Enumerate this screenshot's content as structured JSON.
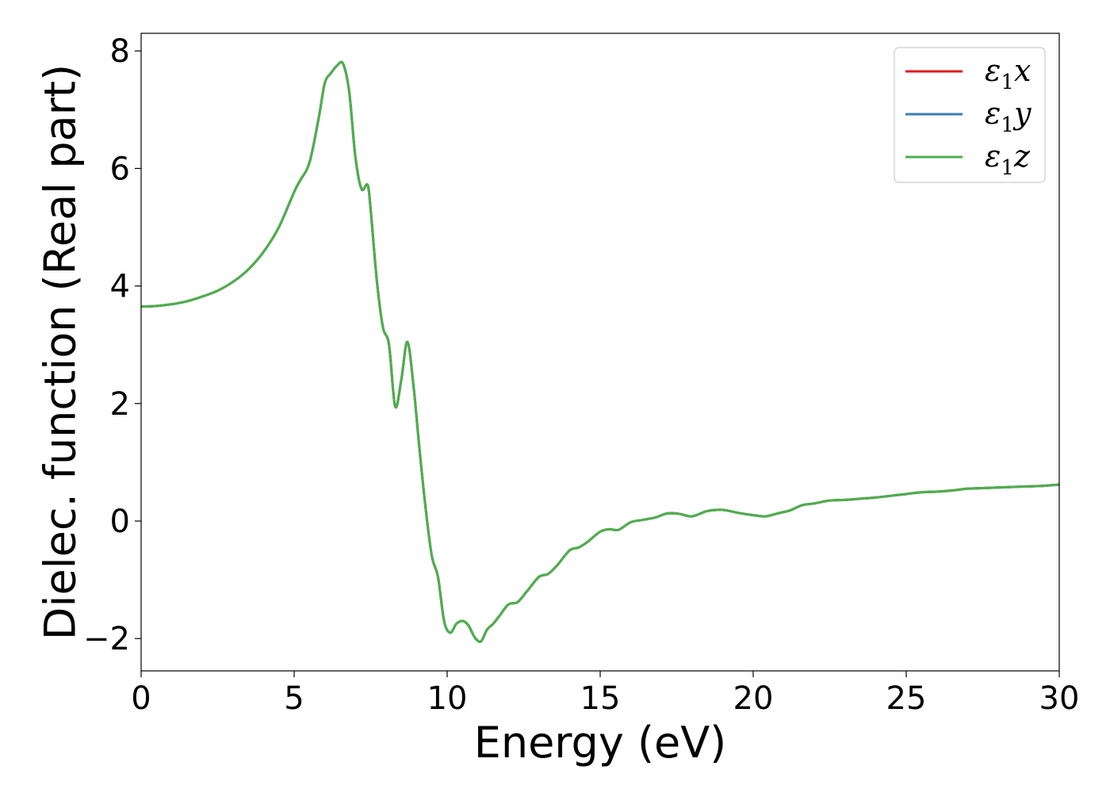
{
  "chart_data": {
    "type": "line",
    "title": "",
    "xlabel": "Energy (eV)",
    "ylabel": "Dielec. function (Real part)",
    "xlim": [
      0,
      30
    ],
    "ylim": [
      -2.55,
      8.3
    ],
    "xticks": [
      0,
      5,
      10,
      15,
      20,
      25,
      30
    ],
    "xtick_labels": [
      "0",
      "5",
      "10",
      "15",
      "20",
      "25",
      "30"
    ],
    "yticks": [
      -2,
      0,
      2,
      4,
      6,
      8
    ],
    "ytick_labels": [
      "−2",
      "0",
      "2",
      "4",
      "6",
      "8"
    ],
    "grid": false,
    "legend_position": "top-right",
    "x": [
      0,
      0.5,
      1,
      1.5,
      2,
      2.5,
      3,
      3.5,
      4,
      4.5,
      5,
      5.2,
      5.5,
      5.8,
      6.0,
      6.2,
      6.4,
      6.6,
      6.8,
      7.0,
      7.2,
      7.4,
      7.5,
      7.7,
      7.9,
      8.1,
      8.3,
      8.5,
      8.7,
      8.9,
      9.1,
      9.3,
      9.5,
      9.7,
      9.9,
      10.1,
      10.3,
      10.5,
      10.7,
      10.9,
      11.1,
      11.3,
      11.5,
      11.7,
      12.0,
      12.3,
      12.6,
      13.0,
      13.3,
      13.6,
      14.0,
      14.3,
      14.6,
      15.0,
      15.3,
      15.6,
      16.0,
      16.4,
      16.8,
      17.2,
      17.6,
      18.0,
      18.5,
      19.0,
      19.5,
      20.0,
      20.4,
      20.8,
      21.2,
      21.6,
      22.0,
      22.5,
      23.0,
      23.5,
      24.0,
      24.5,
      25.0,
      25.5,
      26.0,
      26.5,
      27.0,
      27.5,
      28.0,
      28.5,
      29.0,
      29.5,
      30.0
    ],
    "series": [
      {
        "name": "ε1x",
        "color": "#e41a1c",
        "values": [
          3.65,
          3.66,
          3.69,
          3.74,
          3.82,
          3.92,
          4.07,
          4.28,
          4.58,
          5.0,
          5.6,
          5.8,
          6.1,
          6.85,
          7.45,
          7.62,
          7.75,
          7.78,
          7.3,
          6.2,
          5.65,
          5.72,
          5.3,
          4.1,
          3.3,
          3.0,
          1.95,
          2.4,
          3.05,
          2.3,
          1.2,
          0.2,
          -0.6,
          -0.95,
          -1.7,
          -1.9,
          -1.75,
          -1.7,
          -1.78,
          -1.98,
          -2.05,
          -1.85,
          -1.75,
          -1.62,
          -1.42,
          -1.38,
          -1.2,
          -0.95,
          -0.9,
          -0.75,
          -0.5,
          -0.45,
          -0.35,
          -0.18,
          -0.14,
          -0.15,
          -0.02,
          0.02,
          0.06,
          0.13,
          0.12,
          0.08,
          0.17,
          0.19,
          0.14,
          0.1,
          0.08,
          0.13,
          0.18,
          0.27,
          0.3,
          0.35,
          0.36,
          0.38,
          0.4,
          0.43,
          0.46,
          0.49,
          0.5,
          0.52,
          0.55,
          0.56,
          0.57,
          0.58,
          0.59,
          0.6,
          0.62
        ]
      },
      {
        "name": "ε1y",
        "color": "#377eb8",
        "values": [
          3.65,
          3.66,
          3.69,
          3.74,
          3.82,
          3.92,
          4.07,
          4.28,
          4.58,
          5.0,
          5.6,
          5.8,
          6.1,
          6.85,
          7.45,
          7.62,
          7.75,
          7.78,
          7.3,
          6.2,
          5.65,
          5.72,
          5.3,
          4.1,
          3.3,
          3.0,
          1.95,
          2.4,
          3.05,
          2.3,
          1.2,
          0.2,
          -0.6,
          -0.95,
          -1.7,
          -1.9,
          -1.75,
          -1.7,
          -1.78,
          -1.98,
          -2.05,
          -1.85,
          -1.75,
          -1.62,
          -1.42,
          -1.38,
          -1.2,
          -0.95,
          -0.9,
          -0.75,
          -0.5,
          -0.45,
          -0.35,
          -0.18,
          -0.14,
          -0.15,
          -0.02,
          0.02,
          0.06,
          0.13,
          0.12,
          0.08,
          0.17,
          0.19,
          0.14,
          0.1,
          0.08,
          0.13,
          0.18,
          0.27,
          0.3,
          0.35,
          0.36,
          0.38,
          0.4,
          0.43,
          0.46,
          0.49,
          0.5,
          0.52,
          0.55,
          0.56,
          0.57,
          0.58,
          0.59,
          0.6,
          0.62
        ]
      },
      {
        "name": "ε1z",
        "color": "#4daf4a",
        "values": [
          3.65,
          3.66,
          3.69,
          3.74,
          3.82,
          3.92,
          4.07,
          4.28,
          4.58,
          5.0,
          5.6,
          5.8,
          6.1,
          6.85,
          7.45,
          7.62,
          7.75,
          7.78,
          7.3,
          6.2,
          5.65,
          5.72,
          5.3,
          4.1,
          3.3,
          3.0,
          1.95,
          2.4,
          3.05,
          2.3,
          1.2,
          0.2,
          -0.6,
          -0.95,
          -1.7,
          -1.9,
          -1.75,
          -1.7,
          -1.78,
          -1.98,
          -2.05,
          -1.85,
          -1.75,
          -1.62,
          -1.42,
          -1.38,
          -1.2,
          -0.95,
          -0.9,
          -0.75,
          -0.5,
          -0.45,
          -0.35,
          -0.18,
          -0.14,
          -0.15,
          -0.02,
          0.02,
          0.06,
          0.13,
          0.12,
          0.08,
          0.17,
          0.19,
          0.14,
          0.1,
          0.08,
          0.13,
          0.18,
          0.27,
          0.3,
          0.35,
          0.36,
          0.38,
          0.4,
          0.43,
          0.46,
          0.49,
          0.5,
          0.52,
          0.55,
          0.56,
          0.57,
          0.58,
          0.59,
          0.6,
          0.62
        ]
      }
    ],
    "legend": [
      {
        "symbol": "ε",
        "sub": "1",
        "axis": "x",
        "color": "#e41a1c"
      },
      {
        "symbol": "ε",
        "sub": "1",
        "axis": "y",
        "color": "#377eb8"
      },
      {
        "symbol": "ε",
        "sub": "1",
        "axis": "z",
        "color": "#4daf4a"
      }
    ]
  }
}
